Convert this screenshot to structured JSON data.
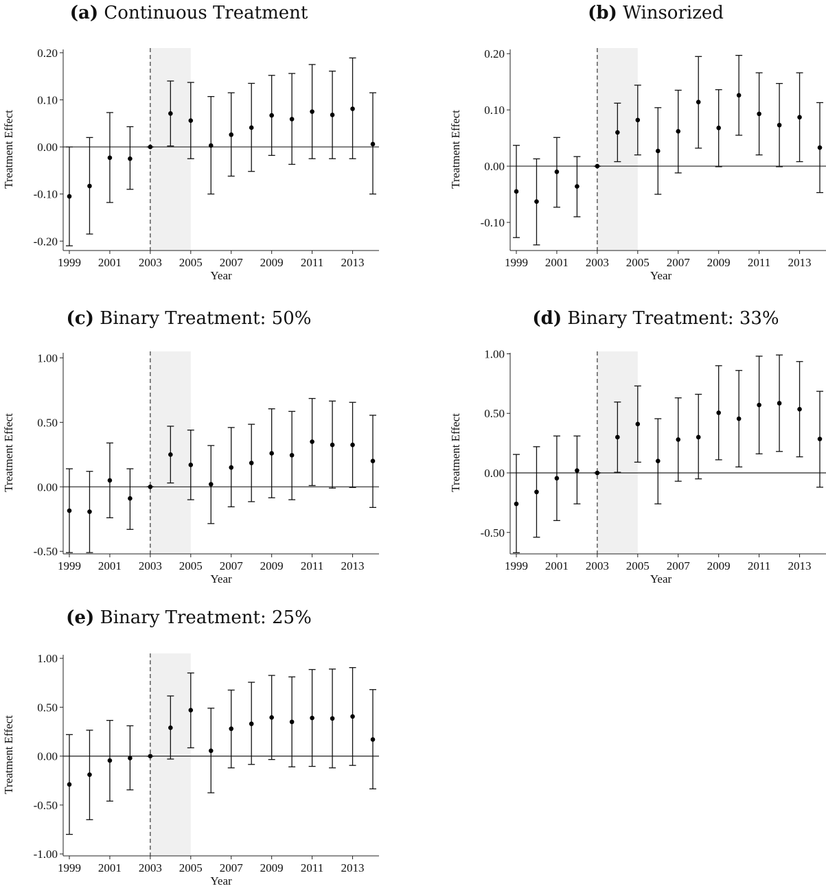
{
  "figure": {
    "panels": [
      {
        "label": "(a)",
        "title": "Continuous Treatment"
      },
      {
        "label": "(b)",
        "title": "Winsorized"
      },
      {
        "label": "(c)",
        "title": "Binary Treatment: 50%"
      },
      {
        "label": "(d)",
        "title": "Binary Treatment: 33%"
      },
      {
        "label": "(e)",
        "title": "Binary Treatment: 25%"
      }
    ]
  },
  "chart_data": [
    {
      "type": "scatter",
      "title": "Continuous Treatment",
      "xlabel": "Year",
      "ylabel": "Treatment Effect",
      "xlim": [
        1999,
        2014
      ],
      "ylim": [
        -0.22,
        0.21
      ],
      "xticks": [
        1999,
        2001,
        2003,
        2005,
        2007,
        2009,
        2011,
        2013
      ],
      "xtick_labels": [
        "1999",
        "2001",
        "2003",
        "2005",
        "2007",
        "2009",
        "2011",
        "2013"
      ],
      "yticks": [
        -0.2,
        -0.1,
        0,
        0.1,
        0.2
      ],
      "ytick_labels": [
        "-0.20",
        "-0.10",
        "0.00",
        "0.10",
        "0.20"
      ],
      "reference_line_y": 0,
      "dashed_vline_x": 2003,
      "shaded_x": [
        2003,
        2005
      ],
      "x": [
        1999,
        2000,
        2001,
        2002,
        2003,
        2004,
        2005,
        2006,
        2007,
        2008,
        2009,
        2010,
        2011,
        2012,
        2013,
        2014
      ],
      "y": [
        -0.105,
        -0.083,
        -0.023,
        -0.025,
        0.0,
        0.071,
        0.056,
        0.003,
        0.026,
        0.041,
        0.067,
        0.059,
        0.075,
        0.068,
        0.081,
        0.006
      ],
      "ci_low": [
        -0.21,
        -0.185,
        -0.118,
        -0.09,
        0.0,
        0.002,
        -0.025,
        -0.1,
        -0.062,
        -0.052,
        -0.018,
        -0.037,
        -0.025,
        -0.025,
        -0.025,
        -0.1
      ],
      "ci_high": [
        0.0,
        0.02,
        0.073,
        0.043,
        0.0,
        0.14,
        0.137,
        0.107,
        0.115,
        0.135,
        0.152,
        0.156,
        0.175,
        0.161,
        0.189,
        0.115
      ]
    },
    {
      "type": "scatter",
      "title": "Winsorized",
      "xlabel": "Year",
      "ylabel": "Treatment Effect",
      "xlim": [
        1999,
        2014
      ],
      "ylim": [
        -0.15,
        0.21
      ],
      "xticks": [
        1999,
        2001,
        2003,
        2005,
        2007,
        2009,
        2011,
        2013
      ],
      "xtick_labels": [
        "1999",
        "2001",
        "2003",
        "2005",
        "2007",
        "2009",
        "2011",
        "2013"
      ],
      "yticks": [
        -0.1,
        0,
        0.1,
        0.2
      ],
      "ytick_labels": [
        "-0.10",
        "0.00",
        "0.10",
        "0.20"
      ],
      "reference_line_y": 0,
      "dashed_vline_x": 2003,
      "shaded_x": [
        2003,
        2005
      ],
      "x": [
        1999,
        2000,
        2001,
        2002,
        2003,
        2004,
        2005,
        2006,
        2007,
        2008,
        2009,
        2010,
        2011,
        2012,
        2013,
        2014
      ],
      "y": [
        -0.045,
        -0.063,
        -0.01,
        -0.036,
        0.0,
        0.06,
        0.082,
        0.027,
        0.062,
        0.114,
        0.068,
        0.126,
        0.093,
        0.073,
        0.087,
        0.033
      ],
      "ci_low": [
        -0.127,
        -0.14,
        -0.073,
        -0.09,
        0.0,
        0.008,
        0.02,
        -0.05,
        -0.012,
        0.032,
        -0.001,
        0.055,
        0.02,
        -0.001,
        0.008,
        -0.047
      ],
      "ci_high": [
        0.037,
        0.013,
        0.051,
        0.017,
        0.0,
        0.112,
        0.144,
        0.104,
        0.135,
        0.195,
        0.136,
        0.197,
        0.166,
        0.147,
        0.166,
        0.113
      ]
    },
    {
      "type": "scatter",
      "title": "Binary Treatment: 50%",
      "xlabel": "Year",
      "ylabel": "Treatment Effect",
      "xlim": [
        1999,
        2014
      ],
      "ylim": [
        -0.52,
        1.05
      ],
      "xticks": [
        1999,
        2001,
        2003,
        2005,
        2007,
        2009,
        2011,
        2013
      ],
      "xtick_labels": [
        "1999",
        "2001",
        "2003",
        "2005",
        "2007",
        "2009",
        "2011",
        "2013"
      ],
      "yticks": [
        -0.5,
        0,
        0.5,
        1.0
      ],
      "ytick_labels": [
        "-0.50",
        "0.00",
        "0.50",
        "1.00"
      ],
      "reference_line_y": 0,
      "dashed_vline_x": 2003,
      "shaded_x": [
        2003,
        2005
      ],
      "x": [
        1999,
        2000,
        2001,
        2002,
        2003,
        2004,
        2005,
        2006,
        2007,
        2008,
        2009,
        2010,
        2011,
        2012,
        2013,
        2014
      ],
      "y": [
        -0.185,
        -0.193,
        0.05,
        -0.09,
        0.0,
        0.25,
        0.17,
        0.02,
        0.15,
        0.185,
        0.26,
        0.245,
        0.35,
        0.325,
        0.325,
        0.2
      ],
      "ci_low": [
        -0.51,
        -0.51,
        -0.24,
        -0.33,
        0.0,
        0.03,
        -0.1,
        -0.285,
        -0.155,
        -0.115,
        -0.085,
        -0.1,
        0.01,
        -0.01,
        -0.005,
        -0.16
      ],
      "ci_high": [
        0.14,
        0.12,
        0.34,
        0.14,
        0.0,
        0.47,
        0.44,
        0.32,
        0.46,
        0.485,
        0.605,
        0.585,
        0.685,
        0.665,
        0.655,
        0.555
      ]
    },
    {
      "type": "scatter",
      "title": "Binary Treatment: 33%",
      "xlabel": "Year",
      "ylabel": "Treatment Effect",
      "xlim": [
        1999,
        2014
      ],
      "ylim": [
        -0.68,
        1.02
      ],
      "xticks": [
        1999,
        2001,
        2003,
        2005,
        2007,
        2009,
        2011,
        2013
      ],
      "xtick_labels": [
        "1999",
        "2001",
        "2003",
        "2005",
        "2007",
        "2009",
        "2011",
        "2013"
      ],
      "yticks": [
        -0.5,
        0,
        0.5,
        1.0
      ],
      "ytick_labels": [
        "-0.50",
        "0.00",
        "0.50",
        "1.00"
      ],
      "reference_line_y": 0,
      "dashed_vline_x": 2003,
      "shaded_x": [
        2003,
        2005
      ],
      "x": [
        1999,
        2000,
        2001,
        2002,
        2003,
        2004,
        2005,
        2006,
        2007,
        2008,
        2009,
        2010,
        2011,
        2012,
        2013,
        2014
      ],
      "y": [
        -0.26,
        -0.16,
        -0.045,
        0.02,
        0.0,
        0.3,
        0.41,
        0.1,
        0.28,
        0.3,
        0.505,
        0.455,
        0.57,
        0.585,
        0.535,
        0.285
      ],
      "ci_low": [
        -0.67,
        -0.54,
        -0.4,
        -0.26,
        0.0,
        0.005,
        0.09,
        -0.26,
        -0.07,
        -0.05,
        0.11,
        0.05,
        0.16,
        0.18,
        0.135,
        -0.12
      ],
      "ci_high": [
        0.155,
        0.22,
        0.31,
        0.31,
        0.0,
        0.595,
        0.73,
        0.455,
        0.63,
        0.66,
        0.9,
        0.86,
        0.98,
        0.99,
        0.935,
        0.685
      ]
    },
    {
      "type": "scatter",
      "title": "Binary Treatment: 25%",
      "xlabel": "Year",
      "ylabel": "Treatment Effect",
      "xlim": [
        1999,
        2014
      ],
      "ylim": [
        -1.02,
        1.05
      ],
      "xticks": [
        1999,
        2001,
        2003,
        2005,
        2007,
        2009,
        2011,
        2013
      ],
      "xtick_labels": [
        "1999",
        "2001",
        "2003",
        "2005",
        "2007",
        "2009",
        "2011",
        "2013"
      ],
      "yticks": [
        -1.0,
        -0.5,
        0,
        0.5,
        1.0
      ],
      "ytick_labels": [
        "-1.00",
        "-0.50",
        "0.00",
        "0.50",
        "1.00"
      ],
      "reference_line_y": 0,
      "dashed_vline_x": 2003,
      "shaded_x": [
        2003,
        2005
      ],
      "x": [
        1999,
        2000,
        2001,
        2002,
        2003,
        2004,
        2005,
        2006,
        2007,
        2008,
        2009,
        2010,
        2011,
        2012,
        2013,
        2014
      ],
      "y": [
        -0.29,
        -0.19,
        -0.045,
        -0.02,
        0.0,
        0.29,
        0.47,
        0.055,
        0.28,
        0.33,
        0.395,
        0.35,
        0.39,
        0.385,
        0.405,
        0.17
      ],
      "ci_low": [
        -0.8,
        -0.65,
        -0.46,
        -0.345,
        0.0,
        -0.03,
        0.085,
        -0.375,
        -0.12,
        -0.085,
        -0.035,
        -0.11,
        -0.105,
        -0.12,
        -0.095,
        -0.335
      ],
      "ci_high": [
        0.22,
        0.265,
        0.365,
        0.31,
        0.0,
        0.615,
        0.85,
        0.49,
        0.675,
        0.755,
        0.825,
        0.81,
        0.885,
        0.89,
        0.905,
        0.68
      ]
    }
  ]
}
